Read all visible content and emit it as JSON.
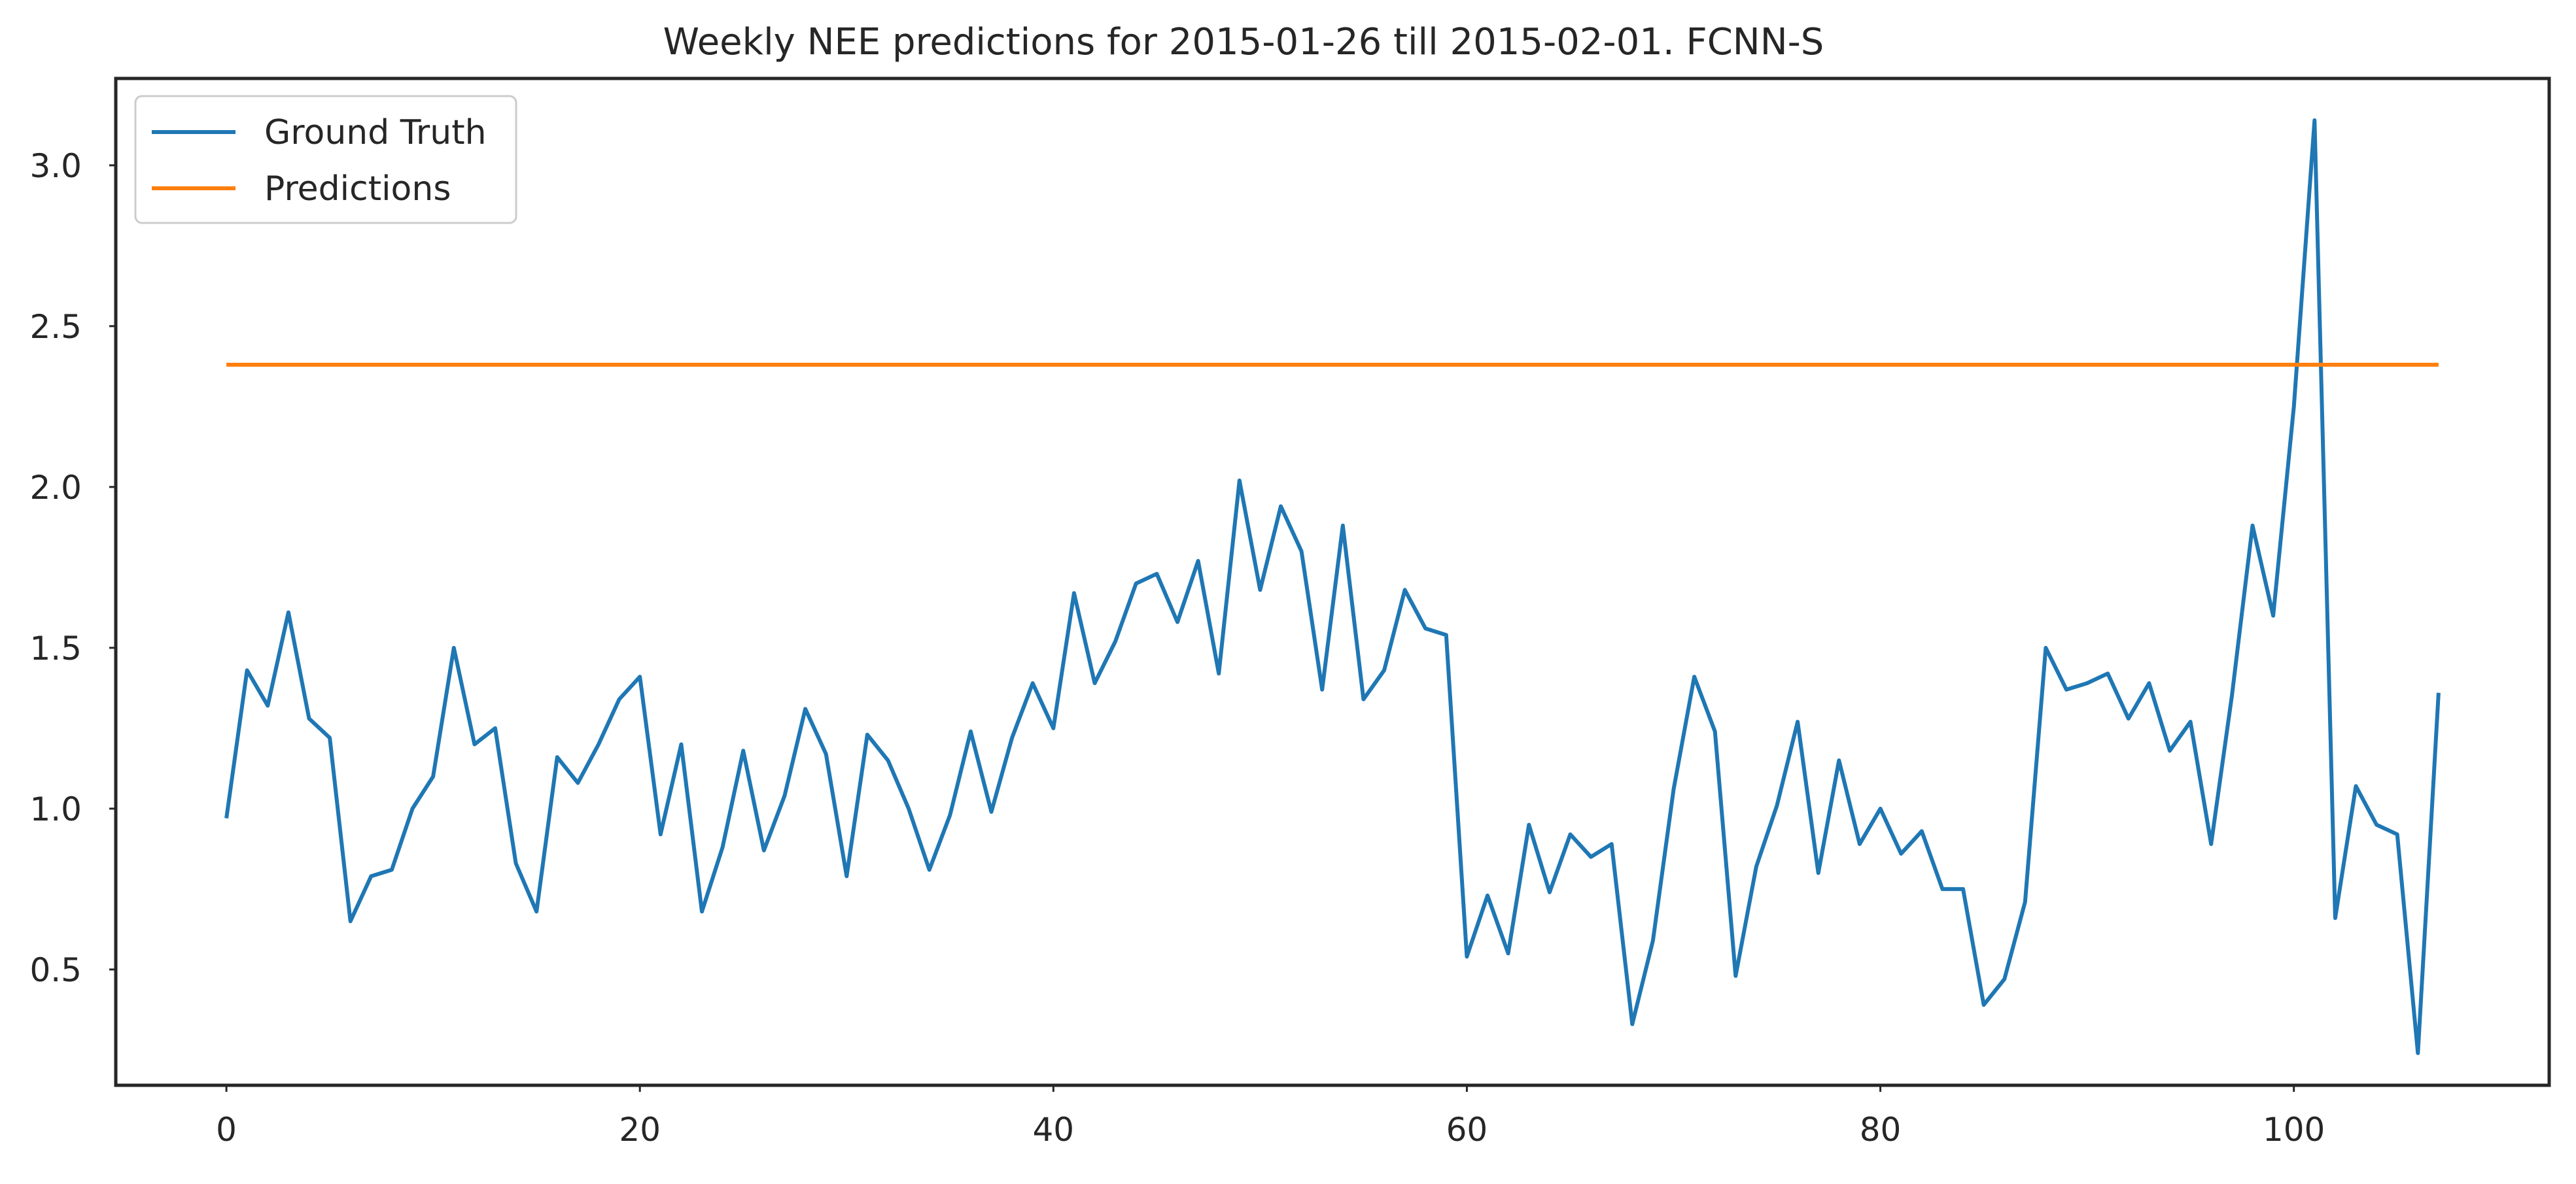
{
  "chart_data": {
    "type": "line",
    "title": "Weekly NEE predictions for 2015-01-26 till 2015-02-01. FCNN-S",
    "xlabel": "",
    "ylabel": "",
    "xlim": [
      -5.35,
      112.35
    ],
    "ylim": [
      0.14,
      3.27
    ],
    "xticks": [
      0,
      20,
      40,
      60,
      80,
      100
    ],
    "yticks": [
      0.5,
      1.0,
      1.5,
      2.0,
      2.5,
      3.0
    ],
    "xtick_labels": [
      "0",
      "20",
      "40",
      "60",
      "80",
      "100"
    ],
    "ytick_labels": [
      "0.5",
      "1.0",
      "1.5",
      "2.0",
      "2.5",
      "3.0"
    ],
    "grid": false,
    "legend_position": "upper-left",
    "series": [
      {
        "name": "Ground Truth",
        "color": "#1f77b4",
        "x": [
          0,
          1,
          2,
          3,
          4,
          5,
          6,
          7,
          8,
          9,
          10,
          11,
          12,
          13,
          14,
          15,
          16,
          17,
          18,
          19,
          20,
          21,
          22,
          23,
          24,
          25,
          26,
          27,
          28,
          29,
          30,
          31,
          32,
          33,
          34,
          35,
          36,
          37,
          38,
          39,
          40,
          41,
          42,
          43,
          44,
          45,
          46,
          47,
          48,
          49,
          50,
          51,
          52,
          53,
          54,
          55,
          56,
          57,
          58,
          59,
          60,
          61,
          62,
          63,
          64,
          65,
          66,
          67,
          68,
          69,
          70,
          71,
          72,
          73,
          74,
          75,
          76,
          77,
          78,
          79,
          80,
          81,
          82,
          83,
          84,
          85,
          86,
          87,
          88,
          89,
          90,
          91,
          92,
          93,
          94,
          95,
          96,
          97,
          98,
          99,
          100,
          101,
          102,
          103,
          104,
          105,
          106,
          107
        ],
        "values": [
          0.97,
          1.43,
          1.32,
          1.61,
          1.28,
          1.22,
          0.65,
          0.79,
          0.81,
          1.0,
          1.1,
          1.5,
          1.2,
          1.25,
          0.83,
          0.68,
          1.16,
          1.08,
          1.2,
          1.34,
          1.41,
          0.92,
          1.2,
          0.68,
          0.88,
          1.18,
          0.87,
          1.04,
          1.31,
          1.17,
          0.79,
          1.23,
          1.15,
          1.0,
          0.81,
          0.98,
          1.24,
          0.99,
          1.22,
          1.39,
          1.25,
          1.67,
          1.39,
          1.52,
          1.7,
          1.73,
          1.58,
          1.77,
          1.42,
          2.02,
          1.68,
          1.94,
          1.8,
          1.37,
          1.88,
          1.34,
          1.43,
          1.68,
          1.56,
          1.54,
          0.54,
          0.73,
          0.55,
          0.95,
          0.74,
          0.92,
          0.85,
          0.89,
          0.33,
          0.59,
          1.06,
          1.41,
          1.24,
          0.48,
          0.82,
          1.01,
          1.27,
          0.8,
          1.15,
          0.89,
          1.0,
          0.86,
          0.93,
          0.75,
          0.75,
          0.39,
          0.47,
          0.71,
          1.5,
          1.37,
          1.39,
          1.42,
          1.28,
          1.39,
          1.18,
          1.27,
          0.89,
          1.35,
          1.88,
          1.6,
          2.25,
          3.14,
          0.66,
          1.07,
          0.95,
          0.92,
          0.24,
          1.36
        ]
      },
      {
        "name": "Predictions",
        "color": "#ff7f0e",
        "x": [
          0,
          107
        ],
        "values": [
          2.38,
          2.38
        ]
      }
    ]
  }
}
